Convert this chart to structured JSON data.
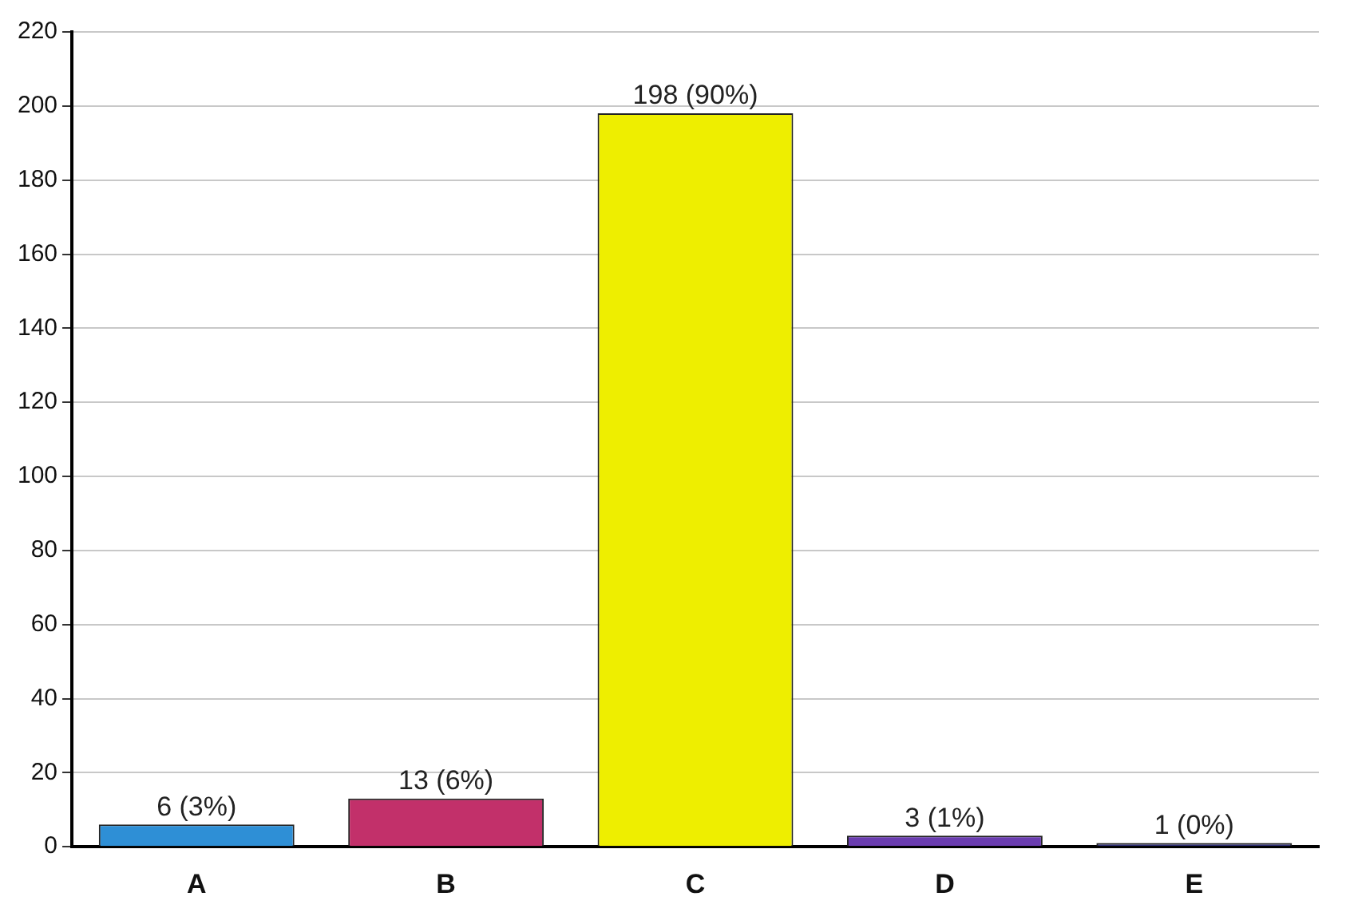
{
  "chart_data": {
    "type": "bar",
    "categories": [
      "A",
      "B",
      "C",
      "D",
      "E"
    ],
    "values": [
      6,
      13,
      198,
      3,
      1
    ],
    "colors": [
      "#2e8fd6",
      "#c2306a",
      "#eeee00",
      "#6a3cb0",
      "#30307a"
    ],
    "value_labels": [
      "6 (3%)",
      "13 (6%)",
      "198 (90%)",
      "3 (1%)",
      "1 (0%)"
    ],
    "ylim": [
      0,
      220
    ],
    "yticks": [
      0,
      20,
      40,
      60,
      80,
      100,
      120,
      140,
      160,
      180,
      200,
      220
    ],
    "grid": "y",
    "legend": false
  }
}
